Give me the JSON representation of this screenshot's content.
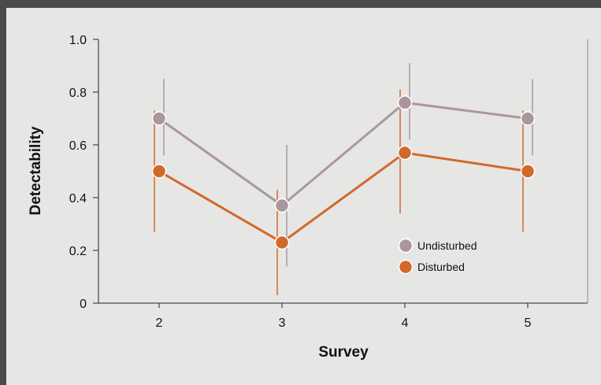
{
  "chart_data": {
    "type": "line",
    "title": "",
    "xlabel": "Survey",
    "ylabel": "Detectability",
    "categories": [
      "2",
      "3",
      "4",
      "5"
    ],
    "ylim": [
      0,
      1.0
    ],
    "yticks": [
      0,
      0.2,
      0.4,
      0.6,
      0.8,
      1.0
    ],
    "ytick_labels": [
      "0",
      "0.2",
      "0.4",
      "0.6",
      "0.8",
      "1.0"
    ],
    "grid": false,
    "legend_position": "lower-right",
    "series": [
      {
        "name": "Undisturbed",
        "color": "#ab969e",
        "values": [
          0.7,
          0.37,
          0.76,
          0.7
        ],
        "lower": [
          0.56,
          0.14,
          0.62,
          0.56
        ],
        "upper": [
          0.85,
          0.6,
          0.91,
          0.85
        ]
      },
      {
        "name": "Disturbed",
        "color": "#d2692a",
        "values": [
          0.5,
          0.23,
          0.57,
          0.5
        ],
        "lower": [
          0.27,
          0.03,
          0.34,
          0.27
        ],
        "upper": [
          0.73,
          0.43,
          0.81,
          0.73
        ]
      }
    ]
  }
}
